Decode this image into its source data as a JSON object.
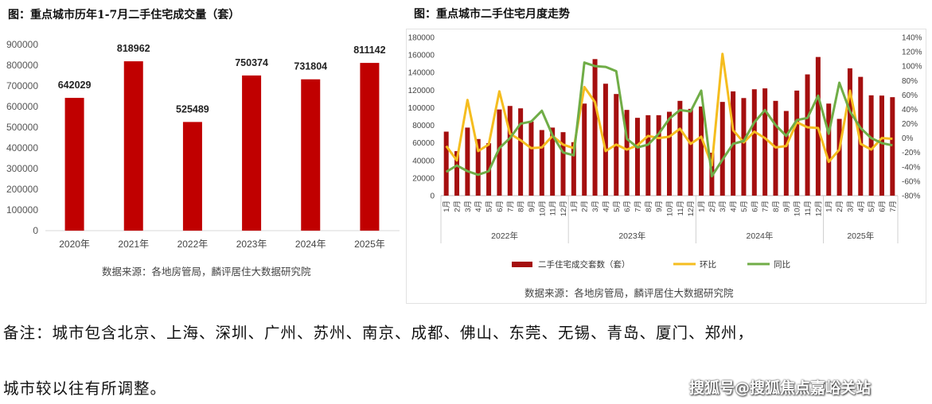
{
  "left_chart": {
    "title": "图：重点城市历年1-7月二手住宅成交量（套）",
    "source": "数据来源：各地房管局，麟评居住大数据研究院"
  },
  "right_chart": {
    "title": "图：重点城市二手住宅月度走势",
    "source": "数据来源：各地房管局，麟评居住大数据研究院"
  },
  "note_line1": "备注：城市包含北京、上海、深圳、广州、苏州、南京、成都、佛山、东莞、无锡、青岛、厦门、郑州，",
  "note_line2": "城市较以往有所调整。",
  "watermark": "搜狐号@搜狐焦点嘉峪关站",
  "chart_data": [
    {
      "type": "bar",
      "title": "图：重点城市历年1-7月二手住宅成交量（套）",
      "categories": [
        "2020年",
        "2021年",
        "2022年",
        "2023年",
        "2024年",
        "2025年"
      ],
      "values": [
        642029,
        818962,
        525489,
        750374,
        731804,
        811142
      ],
      "data_labels": [
        "642029",
        "818962",
        "525489",
        "750374",
        "731804",
        "811142"
      ],
      "ylim": [
        0,
        900000
      ],
      "yticks": [
        "0",
        "100000",
        "200000",
        "300000",
        "400000",
        "500000",
        "600000",
        "700000",
        "800000",
        "900000"
      ],
      "grid": false,
      "color": "#c00000"
    },
    {
      "type": "bar+line",
      "title": "图：重点城市二手住宅月度走势",
      "years": [
        {
          "label": "2022年",
          "months": 12
        },
        {
          "label": "2023年",
          "months": 12
        },
        {
          "label": "2024年",
          "months": 12
        },
        {
          "label": "2025年",
          "months": 7
        }
      ],
      "month_labels": [
        "1月",
        "2月",
        "3月",
        "4月",
        "5月",
        "6月",
        "7月",
        "8月",
        "9月",
        "10月",
        "11月",
        "12月"
      ],
      "ylim_left": [
        0,
        180000
      ],
      "yticks_left": [
        "0",
        "20000",
        "40000",
        "60000",
        "80000",
        "100000",
        "120000",
        "140000",
        "160000",
        "180000"
      ],
      "ylim_right": [
        -80,
        140
      ],
      "yticks_right": [
        "-80%",
        "-60%",
        "-40%",
        "-20%",
        "0%",
        "20%",
        "40%",
        "60%",
        "80%",
        "100%",
        "120%",
        "140%"
      ],
      "legend_position": "bottom",
      "grid": false,
      "series": [
        {
          "name": "二手住宅成交套数（套）",
          "type": "bar",
          "axis": "left",
          "color": "#a50f0f",
          "values": [
            72800,
            50600,
            77400,
            64400,
            59600,
            98000,
            102000,
            99300,
            84300,
            74600,
            77400,
            72200,
            60800,
            104700,
            155300,
            127300,
            115600,
            97500,
            88500,
            91500,
            91500,
            95400,
            107800,
            98700,
            101400,
            48800,
            106600,
            118600,
            111000,
            121000,
            122000,
            107800,
            96300,
            119500,
            137900,
            157700,
            104700,
            87300,
            144800,
            135100,
            114100,
            113800,
            112000
          ]
        },
        {
          "name": "环比",
          "type": "line",
          "axis": "right",
          "unit": "%",
          "color": "#f5bd1f",
          "values": [
            -11,
            -31,
            53,
            -18,
            -9,
            65,
            6,
            -3,
            -14,
            -13,
            3,
            -9,
            -14,
            71,
            50,
            -18,
            -9,
            -16,
            -10,
            3,
            0,
            2,
            13,
            -8,
            2,
            -38,
            117,
            11,
            -6,
            9,
            0,
            -13,
            -11,
            22,
            15,
            14,
            -33,
            -16,
            66,
            -8,
            -16,
            0,
            -1
          ]
        },
        {
          "name": "同比",
          "type": "line",
          "axis": "right",
          "unit": "%",
          "color": "#70ad47",
          "values": [
            -47,
            -38,
            -46,
            -51,
            -46,
            -14,
            0,
            20,
            23,
            38,
            4,
            -20,
            -24,
            105,
            100,
            99,
            93,
            -1,
            -13,
            -9,
            6,
            27,
            39,
            37,
            66,
            -53,
            -30,
            -8,
            -4,
            22,
            39,
            18,
            3,
            25,
            28,
            59,
            6,
            77,
            37,
            14,
            0,
            -7,
            -10
          ]
        }
      ]
    }
  ]
}
